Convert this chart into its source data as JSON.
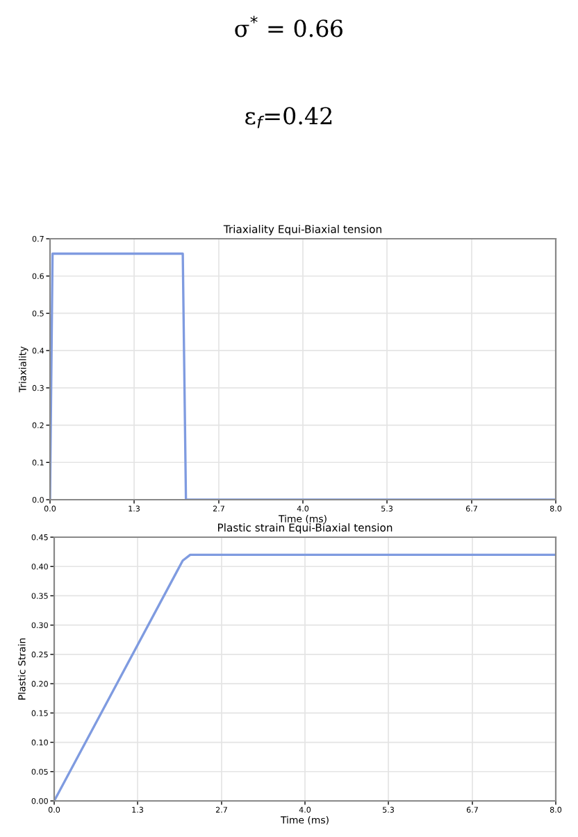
{
  "chart_data": [
    {
      "type": "line",
      "title": "Triaxiality Equi-Biaxial tension",
      "xlabel": "Time (ms)",
      "ylabel": "Triaxiality",
      "annotations": [
        "σ$^{*}$ = 0.66",
        "ε$_{f}$=0.42"
      ],
      "series": [
        {
          "color": "#7f9be0",
          "x": [
            0,
            0.04,
            2.1,
            2.15,
            8
          ],
          "values": [
            0,
            0.66,
            0.66,
            0,
            0
          ]
        }
      ],
      "xlim": [
        0,
        8
      ],
      "ylim": [
        0,
        0.7
      ],
      "xticks": [
        {
          "value": 0,
          "label": "0.0"
        },
        {
          "value": 1.33,
          "label": "1.3"
        },
        {
          "value": 2.67,
          "label": "2.7"
        },
        {
          "value": 4,
          "label": "4.0"
        },
        {
          "value": 5.33,
          "label": "5.3"
        },
        {
          "value": 6.67,
          "label": "6.7"
        },
        {
          "value": 8,
          "label": "8.0"
        }
      ],
      "yticks": [
        {
          "value": 0,
          "label": "0.0"
        },
        0.1,
        0.2,
        0.3,
        0.4,
        0.5,
        0.6,
        0.7
      ],
      "grid": true,
      "legend": false
    },
    {
      "type": "line",
      "title": "Plastic strain Equi-Biaxial tension",
      "xlabel": "Time (ms)",
      "ylabel": "Plastic Strain",
      "series": [
        {
          "color": "#7f9be0",
          "x": [
            0,
            2.05,
            2.17,
            8
          ],
          "values": [
            0,
            0.41,
            0.42,
            0.42
          ]
        }
      ],
      "xlim": [
        0,
        8
      ],
      "ylim": [
        0,
        0.45
      ],
      "xticks": [
        {
          "value": 0,
          "label": "0.0"
        },
        {
          "value": 1.33,
          "label": "1.3"
        },
        {
          "value": 2.67,
          "label": "2.7"
        },
        {
          "value": 4,
          "label": "4.0"
        },
        {
          "value": 5.33,
          "label": "5.3"
        },
        {
          "value": 6.67,
          "label": "6.7"
        },
        {
          "value": 8,
          "label": "8.0"
        }
      ],
      "yticks": [
        {
          "value": 0,
          "label": "0.00"
        },
        {
          "value": 0.05,
          "label": "0.05"
        },
        {
          "value": 0.1,
          "label": "0.10"
        },
        {
          "value": 0.15,
          "label": "0.15"
        },
        {
          "value": 0.2,
          "label": "0.20"
        },
        {
          "value": 0.25,
          "label": "0.25"
        },
        {
          "value": 0.3,
          "label": "0.30"
        },
        {
          "value": 0.35,
          "label": "0.35"
        },
        {
          "value": 0.4,
          "label": "0.40"
        },
        {
          "value": 0.45,
          "label": "0.45"
        }
      ],
      "grid": true,
      "legend": false
    }
  ]
}
